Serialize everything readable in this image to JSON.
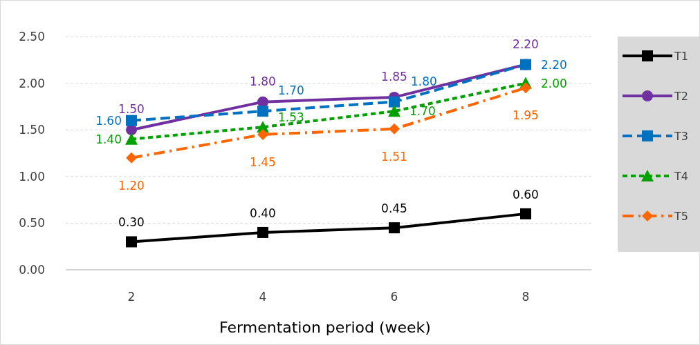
{
  "chart_data": {
    "type": "line",
    "xlabel": "Fermentation period (week)",
    "categories": [
      "2",
      "4",
      "6",
      "8"
    ],
    "ylim": [
      0,
      2.5
    ],
    "yticks": [
      {
        "value": 0,
        "label": "0.00"
      },
      {
        "value": 0.5,
        "label": "0.50"
      },
      {
        "value": 1,
        "label": "1.00"
      },
      {
        "value": 1.5,
        "label": "1.50"
      },
      {
        "value": 2,
        "label": "2.00"
      },
      {
        "value": 2.5,
        "label": "2.50"
      }
    ],
    "grid": "y",
    "legend": "right",
    "series": [
      {
        "name": "T1",
        "color": "#000000",
        "marker": "square",
        "line_style": "solid",
        "values": [
          0.3,
          0.4,
          0.45,
          0.6
        ],
        "value_labels": [
          "0.30",
          "0.40",
          "0.45",
          "0.60"
        ]
      },
      {
        "name": "T2",
        "color": "#7030a0",
        "marker": "circle",
        "line_style": "solid",
        "values": [
          1.5,
          1.8,
          1.85,
          2.2
        ],
        "value_labels": [
          "1.50",
          "1.80",
          "1.85",
          "2.20"
        ]
      },
      {
        "name": "T3",
        "color": "#0070c0",
        "marker": "square",
        "line_style": "dashed",
        "values": [
          1.6,
          1.7,
          1.8,
          2.2
        ],
        "value_labels": [
          "1.60",
          "1.70",
          "1.80",
          "2.20"
        ]
      },
      {
        "name": "T4",
        "color": "#00a000",
        "marker": "triangle",
        "line_style": "dotted",
        "values": [
          1.4,
          1.53,
          1.7,
          2.0
        ],
        "value_labels": [
          "1.40",
          "1.53",
          "1.70",
          "2.00"
        ]
      },
      {
        "name": "T5",
        "color": "#ff6600",
        "marker": "diamond",
        "line_style": "dashdot",
        "values": [
          1.2,
          1.45,
          1.51,
          1.95
        ],
        "value_labels": [
          "1.20",
          "1.45",
          "1.51",
          "1.95"
        ]
      }
    ]
  }
}
